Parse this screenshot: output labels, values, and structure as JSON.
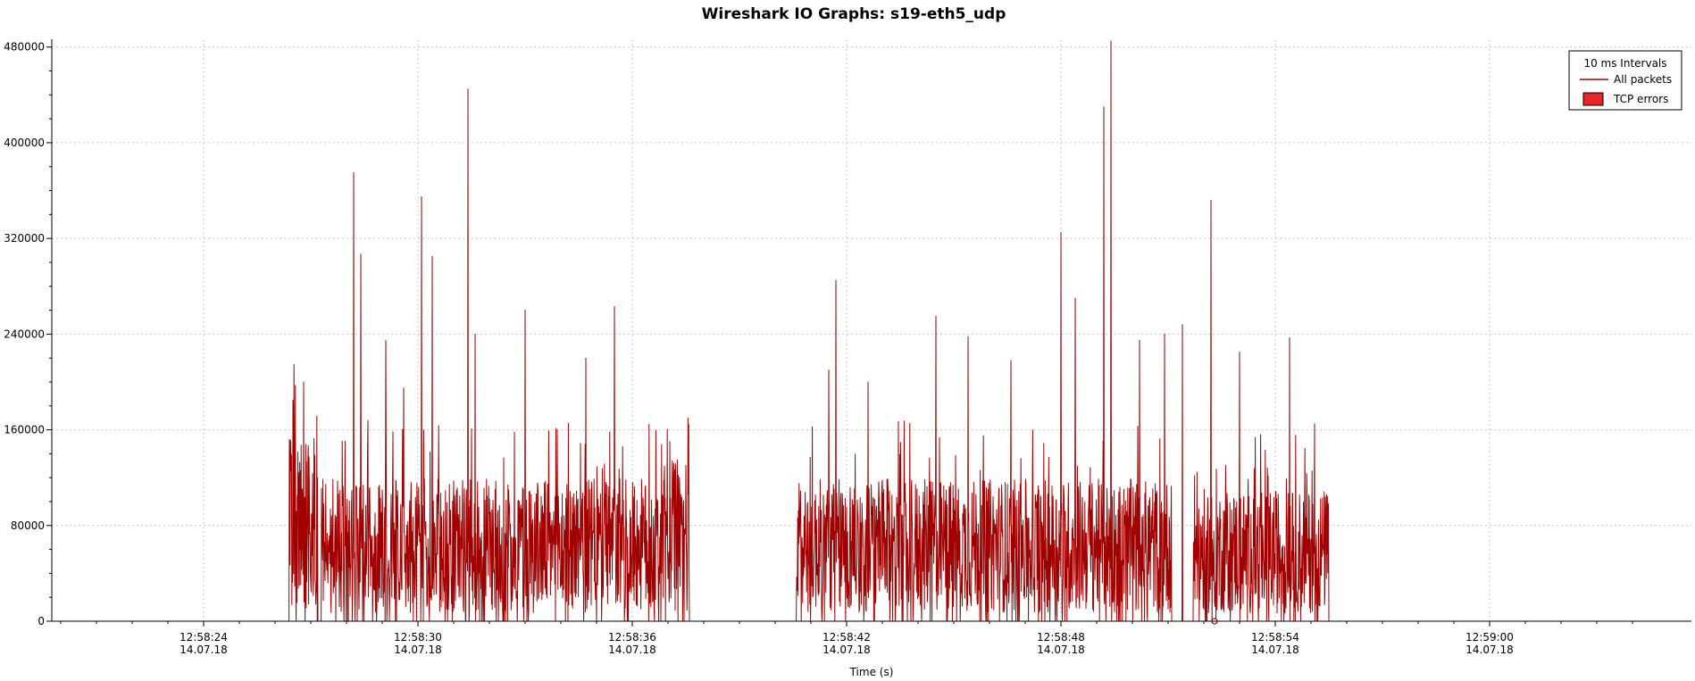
{
  "chart_data": {
    "type": "line",
    "title": "Wireshark IO Graphs: s19-eth5_udp",
    "xlabel": "Time (s)",
    "ylabel": "",
    "ylim": [
      0,
      485000
    ],
    "y_ticks": [
      0,
      80000,
      160000,
      240000,
      320000,
      400000,
      480000
    ],
    "y_tick_labels": [
      "0",
      "80000",
      "160000",
      "240000",
      "320000",
      "400000",
      "480000"
    ],
    "x_ticks": [
      {
        "time": "12:58:24",
        "date": "14.07.18"
      },
      {
        "time": "12:58:30",
        "date": "14.07.18"
      },
      {
        "time": "12:58:36",
        "date": "14.07.18"
      },
      {
        "time": "12:58:42",
        "date": "14.07.18"
      },
      {
        "time": "12:58:48",
        "date": "14.07.18"
      },
      {
        "time": "12:58:54",
        "date": "14.07.18"
      },
      {
        "time": "12:59:00",
        "date": "14.07.18"
      }
    ],
    "grid": true,
    "legend": {
      "placement": "top-right",
      "title": "10 ms Intervals",
      "entries": [
        {
          "name": "All packets",
          "kind": "line",
          "color": "#a00000"
        },
        {
          "name": "TCP errors",
          "kind": "box",
          "color": "#e8232a"
        }
      ]
    },
    "series": [
      {
        "name": "All packets",
        "color": "#a00000",
        "x_start": "12:58:20",
        "x_end": "12:59:04",
        "baseline": 0,
        "active_segments": [
          {
            "start": "12:58:26.4",
            "end": "12:58:27.2",
            "level": 90000
          },
          {
            "start": "12:58:27.3",
            "end": "12:58:37.1",
            "level": 70000
          },
          {
            "start": "12:58:37.1",
            "end": "12:58:37.6",
            "level": 80000
          },
          {
            "start": "12:58:40.6",
            "end": "12:58:51.1",
            "level": 70000
          },
          {
            "start": "12:58:51.7",
            "end": "12:58:55.5",
            "level": 65000
          }
        ],
        "peaks": [
          {
            "x": "12:58:26.5",
            "y": 185000
          },
          {
            "x": "12:58:26.8",
            "y": 200000
          },
          {
            "x": "12:58:28.2",
            "y": 375000
          },
          {
            "x": "12:58:28.4",
            "y": 307000
          },
          {
            "x": "12:58:29.1",
            "y": 235000
          },
          {
            "x": "12:58:29.6",
            "y": 195000
          },
          {
            "x": "12:58:30.1",
            "y": 355000
          },
          {
            "x": "12:58:30.4",
            "y": 305000
          },
          {
            "x": "12:58:31.4",
            "y": 445000
          },
          {
            "x": "12:58:31.6",
            "y": 240000
          },
          {
            "x": "12:58:33.0",
            "y": 260000
          },
          {
            "x": "12:58:34.7",
            "y": 220000
          },
          {
            "x": "12:58:35.5",
            "y": 263000
          },
          {
            "x": "12:58:41.5",
            "y": 210000
          },
          {
            "x": "12:58:41.7",
            "y": 285000
          },
          {
            "x": "12:58:42.6",
            "y": 200000
          },
          {
            "x": "12:58:44.5",
            "y": 255000
          },
          {
            "x": "12:58:45.4",
            "y": 238000
          },
          {
            "x": "12:58:46.6",
            "y": 218000
          },
          {
            "x": "12:58:48.0",
            "y": 325000
          },
          {
            "x": "12:58:48.4",
            "y": 270000
          },
          {
            "x": "12:58:49.2",
            "y": 430000
          },
          {
            "x": "12:58:49.4",
            "y": 485000
          },
          {
            "x": "12:58:50.2",
            "y": 235000
          },
          {
            "x": "12:58:50.9",
            "y": 240000
          },
          {
            "x": "12:58:51.4",
            "y": 248000
          },
          {
            "x": "12:58:52.2",
            "y": 352000
          },
          {
            "x": "12:58:53.0",
            "y": 225000
          },
          {
            "x": "12:58:54.4",
            "y": 237000
          },
          {
            "x": "12:58:55.1",
            "y": 165000
          }
        ]
      }
    ],
    "error_markers": [
      {
        "x": "12:58:52.3",
        "y": 0
      }
    ]
  }
}
